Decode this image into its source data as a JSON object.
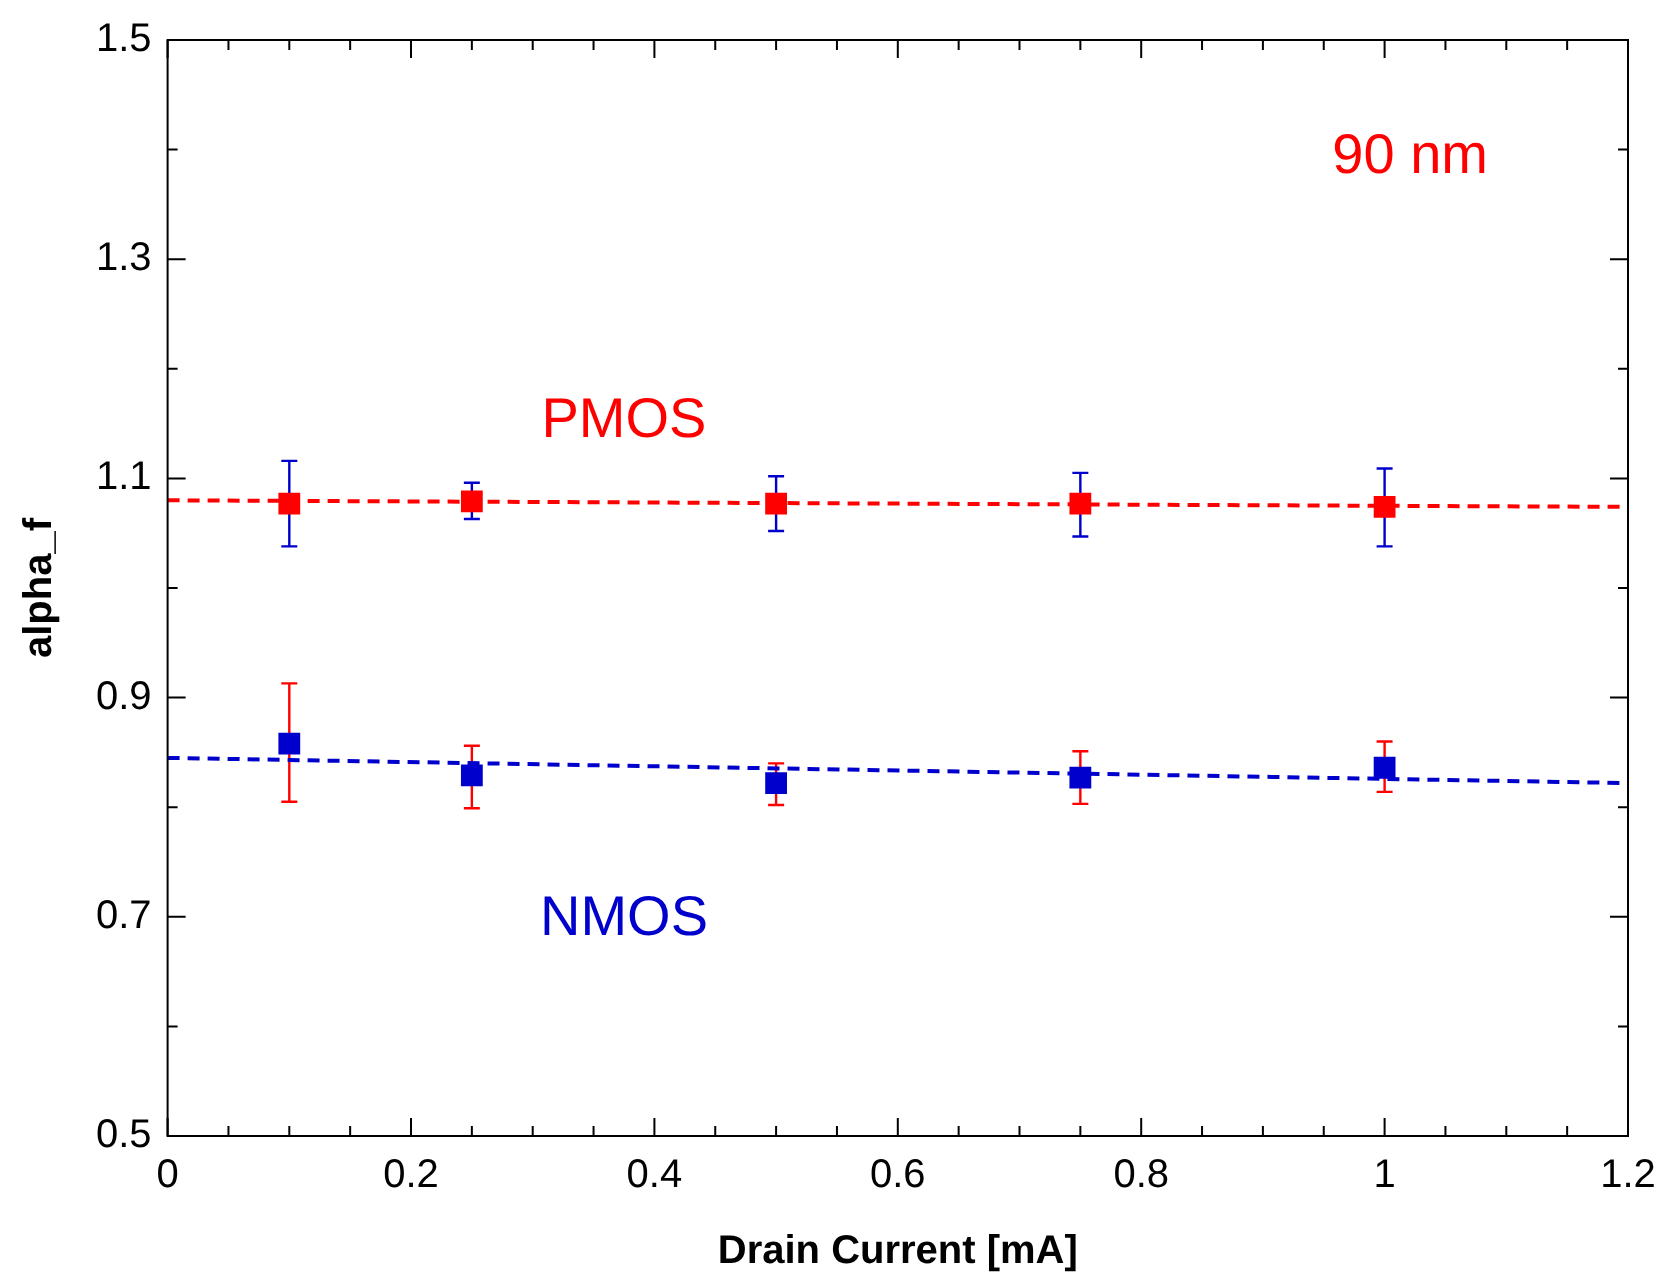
{
  "chart_data": {
    "type": "scatter",
    "xlabel": "Drain Current [mA]",
    "ylabel": "alpha_f",
    "annotations": [
      "90 nm"
    ],
    "xlim": [
      0,
      1.2
    ],
    "ylim": [
      0.5,
      1.5
    ],
    "xticks": [
      0,
      {
        "value": 0.05,
        "label": null
      },
      {
        "value": 0.1,
        "label": null
      },
      {
        "value": 0.15,
        "label": null
      },
      0.2,
      {
        "value": 0.25,
        "label": null
      },
      {
        "value": 0.3,
        "label": null
      },
      {
        "value": 0.35,
        "label": null
      },
      0.4,
      {
        "value": 0.45,
        "label": null
      },
      {
        "value": 0.5,
        "label": null
      },
      {
        "value": 0.55,
        "label": null
      },
      0.6,
      {
        "value": 0.65,
        "label": null
      },
      {
        "value": 0.7,
        "label": null
      },
      {
        "value": 0.75,
        "label": null
      },
      0.8,
      {
        "value": 0.85,
        "label": null
      },
      {
        "value": 0.9,
        "label": null
      },
      {
        "value": 0.95,
        "label": null
      },
      1,
      {
        "value": 1.05,
        "label": null
      },
      {
        "value": 1.1,
        "label": null
      },
      {
        "value": 1.15,
        "label": null
      },
      1.2
    ],
    "yticks": [
      0.5,
      {
        "value": 0.6,
        "label": null
      },
      0.7,
      {
        "value": 0.8,
        "label": null
      },
      0.9,
      {
        "value": 1.0,
        "label": null
      },
      1.1,
      {
        "value": 1.2,
        "label": null
      },
      1.3,
      {
        "value": 1.4,
        "label": null
      },
      1.5
    ],
    "grid": false,
    "legend": false,
    "marker": "square",
    "series": [
      {
        "name": "PMOS",
        "color": "#ff0000",
        "x": [
          0.1,
          0.25,
          0.5,
          0.75,
          1
        ],
        "values": [
          1.077,
          1.079,
          1.077,
          1.077,
          1.074
        ],
        "errors": [
          [
            1.038,
            1.116
          ],
          [
            1.063,
            1.096
          ],
          [
            1.052,
            1.102
          ],
          [
            1.047,
            1.105
          ],
          [
            1.038,
            1.109
          ]
        ]
      },
      {
        "name": "NMOS",
        "color": "#0000cc",
        "x": [
          0.1,
          0.25,
          0.5,
          0.75,
          1
        ],
        "values": [
          0.858,
          0.829,
          0.822,
          0.827,
          0.836
        ],
        "errors": [
          [
            0.805,
            0.913
          ],
          [
            0.799,
            0.856
          ],
          [
            0.802,
            0.84
          ],
          [
            0.803,
            0.851
          ],
          [
            0.814,
            0.86
          ]
        ]
      },
      {
        "type": "line",
        "color": "#ff0000",
        "line_style": "dashed",
        "marker": "none",
        "x": [
          0,
          1.2
        ],
        "values": [
          1.08,
          1.074
        ]
      },
      {
        "type": "line",
        "color": "#0000cc",
        "line_style": "dashed",
        "marker": "none",
        "x": [
          0,
          1.2
        ],
        "values": [
          0.845,
          0.822
        ]
      }
    ]
  }
}
